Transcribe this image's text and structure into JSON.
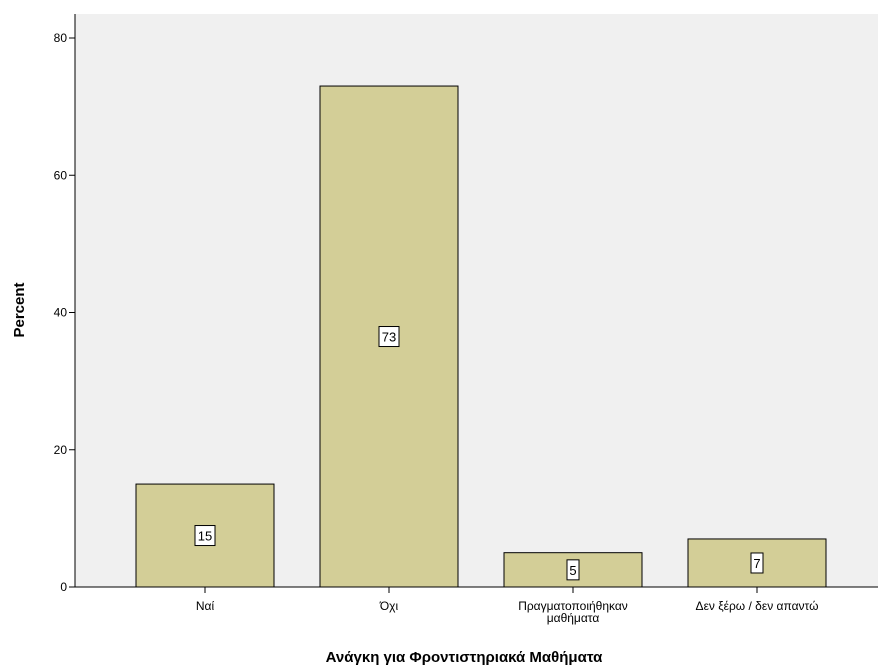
{
  "chart_data": {
    "type": "bar",
    "categories": [
      [
        "Ναί"
      ],
      [
        "Όχι"
      ],
      [
        "Πραγματοποιήθηκαν",
        "μαθήματα"
      ],
      [
        "Δεν ξέρω / δεν απαντώ"
      ]
    ],
    "values": [
      15,
      73,
      5,
      7
    ],
    "data_labels": [
      "15",
      "73",
      "5",
      "7"
    ],
    "xlabel": "Ανάγκη για Φροντιστηριακά Μαθήματα",
    "ylabel": "Percent",
    "ylim": [
      0,
      80
    ],
    "yticks": [
      0,
      20,
      40,
      60,
      80
    ],
    "grid": false,
    "colors": {
      "bar_fill": "#d3ce97",
      "plot_background": "#f0f0f0"
    }
  }
}
